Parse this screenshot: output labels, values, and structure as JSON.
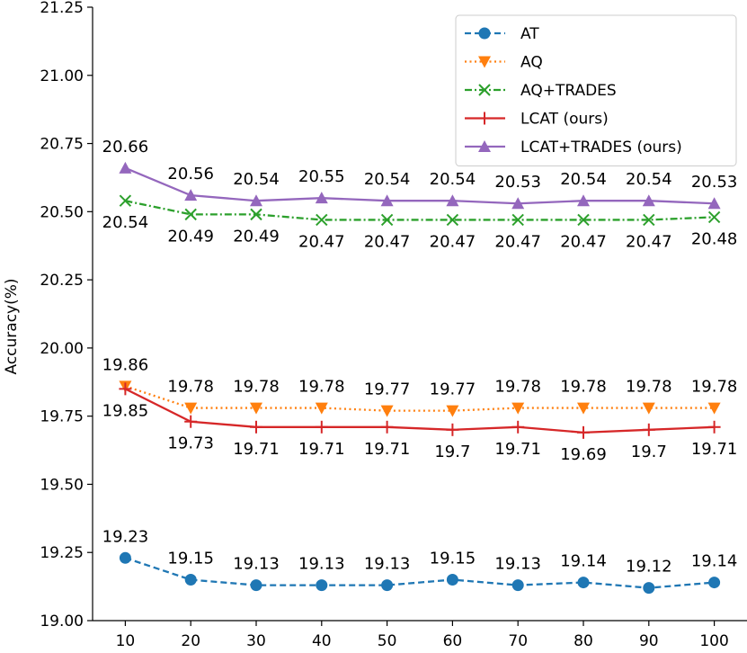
{
  "chart_data": {
    "type": "line",
    "title": "",
    "xlabel": "",
    "ylabel": "Accuracy(%)",
    "ylim": [
      19.0,
      21.25
    ],
    "xlim": [
      5,
      105
    ],
    "x": [
      10,
      20,
      30,
      40,
      50,
      60,
      70,
      80,
      90,
      100
    ],
    "x_tick_labels": [
      "10",
      "20",
      "30",
      "40",
      "50",
      "60",
      "70",
      "80",
      "90",
      "100"
    ],
    "y_ticks": [
      19.0,
      19.25,
      19.5,
      19.75,
      20.0,
      20.25,
      20.5,
      20.75,
      21.0,
      21.25
    ],
    "y_tick_labels": [
      "19.00",
      "19.25",
      "19.50",
      "19.75",
      "20.00",
      "20.25",
      "20.50",
      "20.75",
      "21.00",
      "21.25"
    ],
    "grid": false,
    "legend_position": "top-right",
    "series": [
      {
        "name": "AT",
        "color": "#1f77b4",
        "linestyle": "dashed",
        "marker": "circle",
        "values": [
          19.23,
          19.15,
          19.13,
          19.13,
          19.13,
          19.15,
          19.13,
          19.14,
          19.12,
          19.14
        ],
        "labels": [
          "19.23",
          "19.15",
          "19.13",
          "19.13",
          "19.13",
          "19.15",
          "19.13",
          "19.14",
          "19.12",
          "19.14"
        ],
        "label_side": "above"
      },
      {
        "name": "AQ",
        "color": "#ff7f0e",
        "linestyle": "dotted",
        "marker": "triangle-down",
        "values": [
          19.86,
          19.78,
          19.78,
          19.78,
          19.77,
          19.77,
          19.78,
          19.78,
          19.78,
          19.78
        ],
        "labels": [
          "19.86",
          "19.78",
          "19.78",
          "19.78",
          "19.77",
          "19.77",
          "19.78",
          "19.78",
          "19.78",
          "19.78"
        ],
        "label_side": "above"
      },
      {
        "name": "AQ+TRADES",
        "color": "#2ca02c",
        "linestyle": "dashdot",
        "marker": "x",
        "values": [
          20.54,
          20.49,
          20.49,
          20.47,
          20.47,
          20.47,
          20.47,
          20.47,
          20.47,
          20.48
        ],
        "labels": [
          "20.54",
          "20.49",
          "20.49",
          "20.47",
          "20.47",
          "20.47",
          "20.47",
          "20.47",
          "20.47",
          "20.48"
        ],
        "label_side": "below"
      },
      {
        "name": "LCAT (ours)",
        "color": "#d62728",
        "linestyle": "solid",
        "marker": "plus",
        "values": [
          19.85,
          19.73,
          19.71,
          19.71,
          19.71,
          19.7,
          19.71,
          19.69,
          19.7,
          19.71
        ],
        "labels": [
          "19.85",
          "19.73",
          "19.71",
          "19.71",
          "19.71",
          "19.7",
          "19.71",
          "19.69",
          "19.7",
          "19.71"
        ],
        "label_side": "below"
      },
      {
        "name": "LCAT+TRADES (ours)",
        "color": "#9467bd",
        "linestyle": "solid",
        "marker": "triangle-up",
        "values": [
          20.66,
          20.56,
          20.54,
          20.55,
          20.54,
          20.54,
          20.53,
          20.54,
          20.54,
          20.53
        ],
        "labels": [
          "20.66",
          "20.56",
          "20.54",
          "20.55",
          "20.54",
          "20.54",
          "20.53",
          "20.54",
          "20.54",
          "20.53"
        ],
        "label_side": "above"
      }
    ]
  }
}
